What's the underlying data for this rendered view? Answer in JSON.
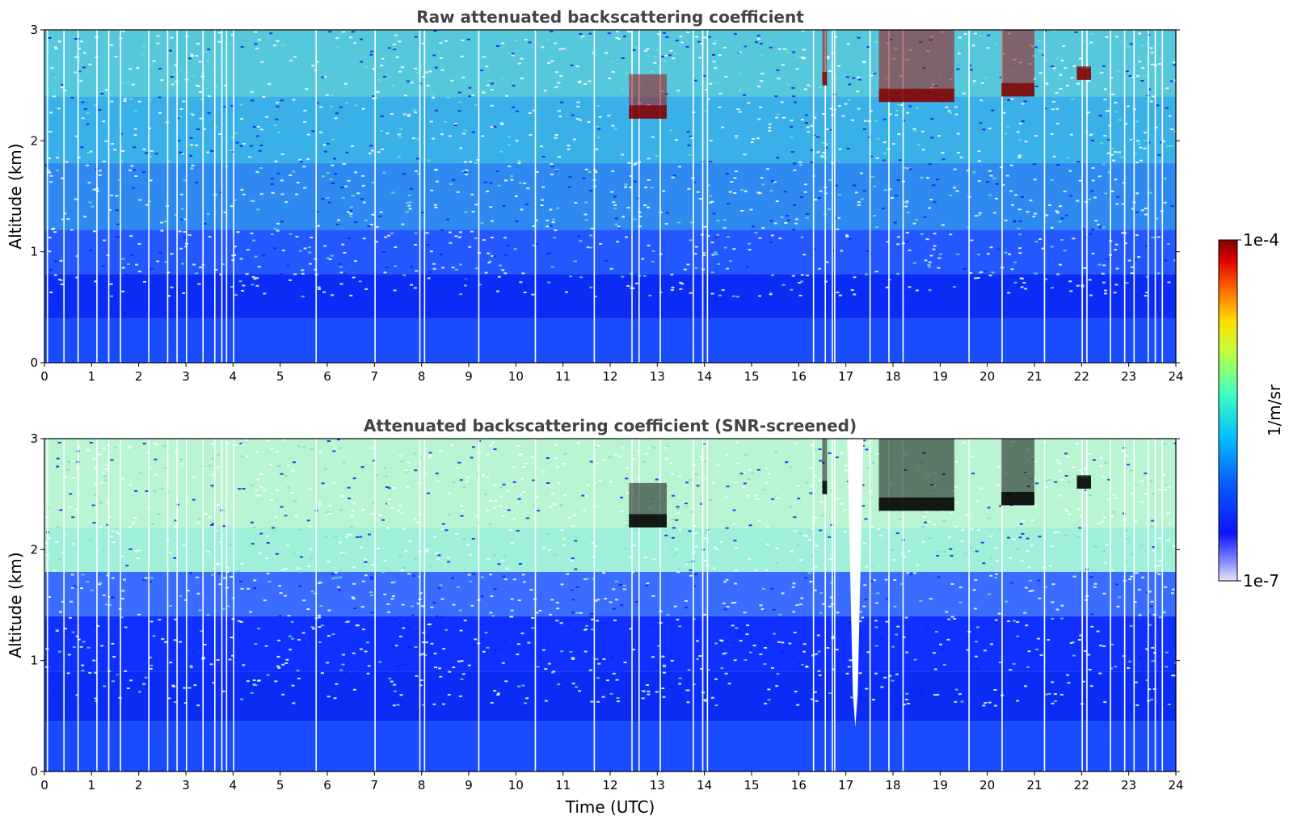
{
  "chart_data": [
    {
      "type": "heatmap",
      "title": "Raw attenuated backscattering coefficient",
      "xlabel": "",
      "ylabel": "Altitude (km)",
      "xlim": [
        0,
        24
      ],
      "ylim": [
        0,
        3
      ],
      "x_ticks": [
        "0",
        "1",
        "2",
        "3",
        "4",
        "5",
        "6",
        "7",
        "8",
        "9",
        "10",
        "11",
        "12",
        "13",
        "14",
        "15",
        "16",
        "17",
        "18",
        "19",
        "20",
        "21",
        "22",
        "23",
        "24"
      ],
      "y_ticks": [
        "0",
        "1",
        "2",
        "3"
      ],
      "colorscale": "jet (log)",
      "cloud_features": [
        {
          "t_start": 12.4,
          "t_end": 13.2,
          "alt_min": 2.2,
          "alt_max": 2.6
        },
        {
          "t_start": 16.5,
          "t_end": 16.6,
          "alt_min": 2.5,
          "alt_max": 3.0
        },
        {
          "t_start": 17.7,
          "t_end": 19.3,
          "alt_min": 2.35,
          "alt_max": 3.0
        },
        {
          "t_start": 20.3,
          "t_end": 21.0,
          "alt_min": 2.4,
          "alt_max": 3.0
        },
        {
          "t_start": 21.9,
          "t_end": 22.2,
          "alt_min": 2.55,
          "alt_max": 2.65
        }
      ]
    },
    {
      "type": "heatmap",
      "title": "Attenuated backscattering coefficient (SNR-screened)",
      "xlabel": "Time (UTC)",
      "ylabel": "Altitude (km)",
      "xlim": [
        0,
        24
      ],
      "ylim": [
        0,
        3
      ],
      "x_ticks": [
        "0",
        "1",
        "2",
        "3",
        "4",
        "5",
        "6",
        "7",
        "8",
        "9",
        "10",
        "11",
        "12",
        "13",
        "14",
        "15",
        "16",
        "17",
        "18",
        "19",
        "20",
        "21",
        "22",
        "23",
        "24"
      ],
      "y_ticks": [
        "0",
        "1",
        "2",
        "3"
      ],
      "colorscale": "jet (log)",
      "screened_gap": {
        "t_center": 17.2,
        "alt_min": 0.4,
        "alt_max": 3.0
      }
    }
  ],
  "colorbar": {
    "label": "1/m/sr",
    "max_label": "1e-4",
    "min_label": "1e-7",
    "scale": "log",
    "range": [
      1e-07,
      0.0001
    ]
  }
}
